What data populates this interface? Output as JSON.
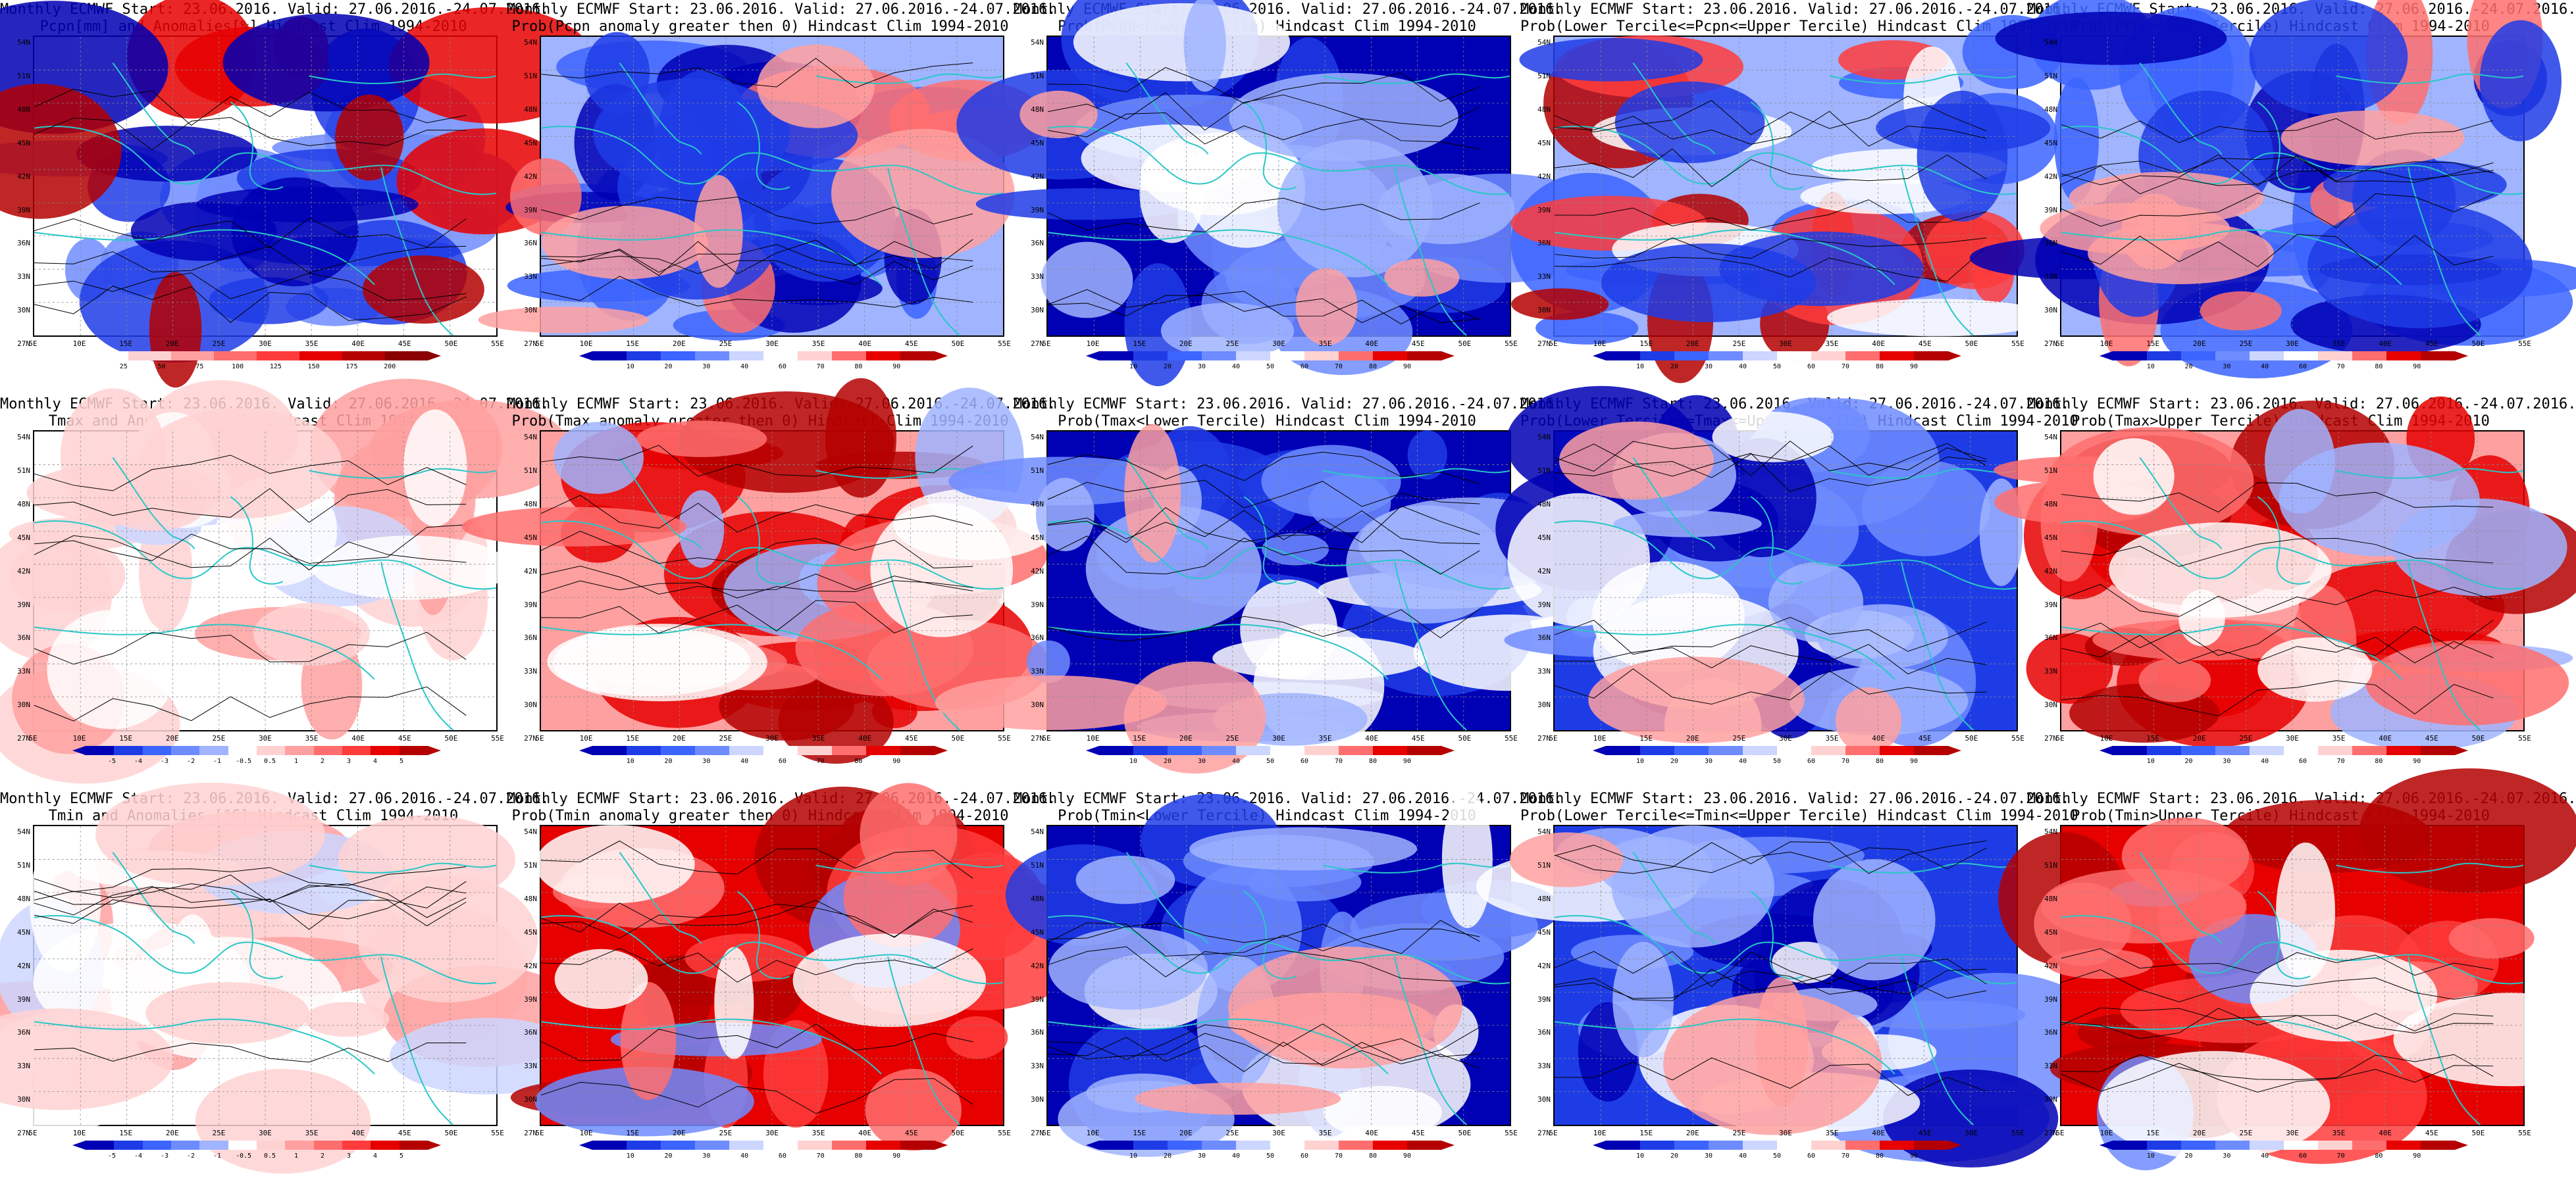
{
  "lat_labels": [
    "54N",
    "51N",
    "48N",
    "45N",
    "42N",
    "39N",
    "36N",
    "33N",
    "30N",
    "27N"
  ],
  "lon_labels": [
    "5E",
    "10E",
    "15E",
    "20E",
    "25E",
    "30E",
    "35E",
    "40E",
    "45E",
    "50E",
    "55E"
  ],
  "panels": [
    {
      "title1": "Monthly ECMWF Start: 23.06.2016. Valid: 27.06.2016.-24.07.2016.",
      "title2": "Pcpn[mm] and Anomalies[%] Hindcast Clim 1994-2010",
      "scheme": "pcpn",
      "ticks": [
        "25",
        "50",
        "75",
        "100",
        "125",
        "150",
        "175",
        "200"
      ]
    },
    {
      "title1": "Monthly ECMWF Start: 23.06.2016. Valid: 27.06.2016.-24.07.2016.",
      "title2": "Prob(Pcpn anomaly greater then 0) Hindcast Clim 1994-2010",
      "scheme": "prob-blue",
      "ticks": [
        "10",
        "20",
        "30",
        "40",
        "60",
        "70",
        "80",
        "90"
      ]
    },
    {
      "title1": "Monthly ECMWF Start: 23.06.2016. Valid: 27.06.2016.-24.07.2016.",
      "title2": "Prob(Pcpn<Lower Tercile) Hindcast Clim 1994-2010",
      "scheme": "prob-blue-deep",
      "ticks": [
        "10",
        "20",
        "30",
        "40",
        "50",
        "60",
        "70",
        "80",
        "90"
      ]
    },
    {
      "title1": "Monthly ECMWF Start: 23.06.2016. Valid: 27.06.2016.-24.07.2016.",
      "title2": "Prob(Lower Tercile<=Pcpn<=Upper Tercile) Hindcast Clim 1994-2010",
      "scheme": "prob-mixed",
      "ticks": [
        "10",
        "20",
        "30",
        "40",
        "50",
        "60",
        "70",
        "80",
        "90"
      ]
    },
    {
      "title1": "Monthly ECMWF Start: 23.06.2016. Valid: 27.06.2016.-24.07.2016.",
      "title2": "Prob(Pcpn>Upper Tercile) Hindcast Clim 1994-2010",
      "scheme": "prob-blue",
      "ticks": [
        "10",
        "20",
        "30",
        "40",
        "60",
        "70",
        "80",
        "90"
      ]
    },
    {
      "title1": "Monthly ECMWF Start: 23.06.2016. Valid: 27.06.2016.-24.07.2016.",
      "title2": "Tmax and Anomalies [°C] Hindcast Clim 1994-2010",
      "scheme": "temp-light",
      "ticks": [
        "-5",
        "-4",
        "-3",
        "-2",
        "-1",
        "-0.5",
        "0.5",
        "1",
        "2",
        "3",
        "4",
        "5"
      ]
    },
    {
      "title1": "Monthly ECMWF Start: 23.06.2016. Valid: 27.06.2016.-24.07.2016.",
      "title2": "Prob(Tmax anomaly greater then 0) Hindcast Clim 1994-2010",
      "scheme": "prob-red",
      "ticks": [
        "10",
        "20",
        "30",
        "40",
        "60",
        "70",
        "80",
        "90"
      ]
    },
    {
      "title1": "Monthly ECMWF Start: 23.06.2016. Valid: 27.06.2016.-24.07.2016.",
      "title2": "Prob(Tmax<Lower Tercile) Hindcast Clim 1994-2010",
      "scheme": "prob-blue-deep",
      "ticks": [
        "10",
        "20",
        "30",
        "40",
        "50",
        "60",
        "70",
        "80",
        "90"
      ]
    },
    {
      "title1": "Monthly ECMWF Start: 23.06.2016. Valid: 27.06.2016.-24.07.2016.",
      "title2": "Prob(Lower Tercile<=Tmax<=Upper Tercile) Hindcast Clim 1994-2010",
      "scheme": "prob-blue-mid",
      "ticks": [
        "10",
        "20",
        "30",
        "40",
        "50",
        "60",
        "70",
        "80",
        "90"
      ]
    },
    {
      "title1": "Monthly ECMWF Start: 23.06.2016. Valid: 27.06.2016.-24.07.2016.",
      "title2": "Prob(Tmax>Upper Tercile) Hindcast Clim 1994-2010",
      "scheme": "prob-red",
      "ticks": [
        "10",
        "20",
        "30",
        "40",
        "60",
        "70",
        "80",
        "90"
      ]
    },
    {
      "title1": "Monthly ECMWF Start: 23.06.2016. Valid: 27.06.2016.-24.07.2016.",
      "title2": "Tmin and Anomalies [°C] Hindcast Clim 1994-2010",
      "scheme": "temp-light",
      "ticks": [
        "-5",
        "-4",
        "-3",
        "-2",
        "-1",
        "-0.5",
        "0.5",
        "1",
        "2",
        "3",
        "4",
        "5"
      ]
    },
    {
      "title1": "Monthly ECMWF Start: 23.06.2016. Valid: 27.06.2016.-24.07.2016.",
      "title2": "Prob(Tmin anomaly greater then 0) Hindcast Clim 1994-2010",
      "scheme": "prob-red-deep",
      "ticks": [
        "10",
        "20",
        "30",
        "40",
        "60",
        "70",
        "80",
        "90"
      ]
    },
    {
      "title1": "Monthly ECMWF Start: 23.06.2016. Valid: 27.06.2016.-24.07.2016.",
      "title2": "Prob(Tmin<Lower Tercile) Hindcast Clim 1994-2010",
      "scheme": "prob-blue-deep",
      "ticks": [
        "10",
        "20",
        "30",
        "40",
        "50",
        "60",
        "70",
        "80",
        "90"
      ]
    },
    {
      "title1": "Monthly ECMWF Start: 23.06.2016. Valid: 27.06.2016.-24.07.2016.",
      "title2": "Prob(Lower Tercile<=Tmin<=Upper Tercile) Hindcast Clim 1994-2010",
      "scheme": "prob-blue-mid",
      "ticks": [
        "10",
        "20",
        "30",
        "40",
        "50",
        "60",
        "70",
        "80",
        "90"
      ]
    },
    {
      "title1": "Monthly ECMWF Start: 23.06.2016. Valid: 27.06.2016.-24.07.2016.",
      "title2": "Prob(Tmin>Upper Tercile) Hindcast Clim 1994-2010",
      "scheme": "prob-red-deep",
      "ticks": [
        "10",
        "20",
        "30",
        "40",
        "60",
        "70",
        "80",
        "90"
      ]
    }
  ],
  "colors": {
    "blue_scale": [
      "#0000b4",
      "#1e3ce6",
      "#3c64ff",
      "#6e8cff",
      "#a0b4ff",
      "#ccd6ff"
    ],
    "red_scale": [
      "#ffd2d2",
      "#ffa0a0",
      "#ff6e6e",
      "#ff3c3c",
      "#e60000",
      "#b40000"
    ],
    "coast": "#29c7c7",
    "contour": "#000000"
  }
}
